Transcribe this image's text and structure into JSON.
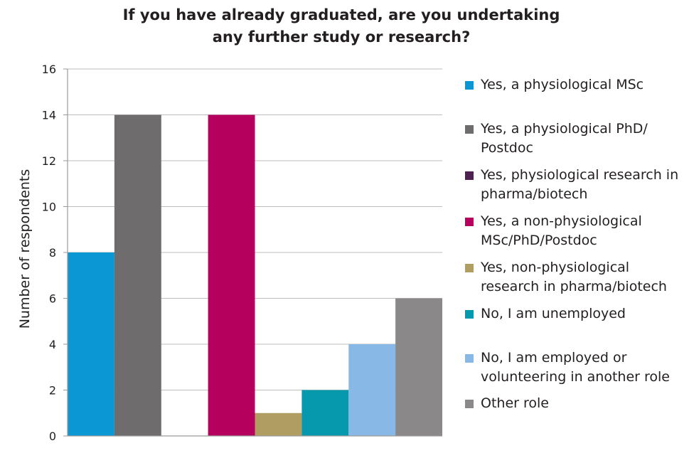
{
  "chart_data": {
    "type": "bar",
    "title": "If you have already graduated, are you undertaking any further study or research?",
    "title_lines": [
      "If you have already graduated, are you undertaking",
      "any further study or research?"
    ],
    "xlabel": "",
    "ylabel": "Number of respondents",
    "ylim": [
      0,
      16
    ],
    "yticks": [
      "0",
      "2",
      "4",
      "6",
      "8",
      "10",
      "12",
      "14",
      "16"
    ],
    "grid": true,
    "legend_position": "right",
    "series": [
      {
        "name": "Yes, a physiological MSc",
        "value": 8,
        "color": "#0b96d4"
      },
      {
        "name": "Yes, a physiological PhD/ Postdoc",
        "value": 14,
        "color": "#6e6c6d"
      },
      {
        "name": "Yes, physiological research in pharma/biotech",
        "value": 0,
        "color": "#4f2150"
      },
      {
        "name": "Yes, a non-physiological MSc/PhD/Postdoc",
        "value": 14,
        "color": "#b5005e"
      },
      {
        "name": "Yes, non-physiological research in pharma/biotech",
        "value": 1,
        "color": "#b09d62"
      },
      {
        "name": "No, I am unemployed",
        "value": 2,
        "color": "#0699ad"
      },
      {
        "name": "No, I am employed or volunteering in another role",
        "value": 4,
        "color": "#88b8e5"
      },
      {
        "name": "Other role",
        "value": 6,
        "color": "#8a8889"
      }
    ]
  },
  "legend": {
    "items": [
      {
        "label": "Yes, a physiological MSc",
        "color": "#0b96d4"
      },
      {
        "label": "Yes, a physiological PhD/\nPostdoc",
        "color": "#6e6c6d"
      },
      {
        "label": "Yes, physiological research in\npharma/biotech",
        "color": "#4f2150"
      },
      {
        "label": "Yes, a non-physiological\nMSc/PhD/Postdoc",
        "color": "#b5005e"
      },
      {
        "label": "Yes, non-physiological\nresearch in pharma/biotech",
        "color": "#b09d62"
      },
      {
        "label": "No, I am unemployed",
        "color": "#0699ad"
      },
      {
        "label": "No, I am employed or\nvolunteering in another role",
        "color": "#88b8e5"
      },
      {
        "label": "Other role",
        "color": "#8a8889"
      }
    ]
  }
}
